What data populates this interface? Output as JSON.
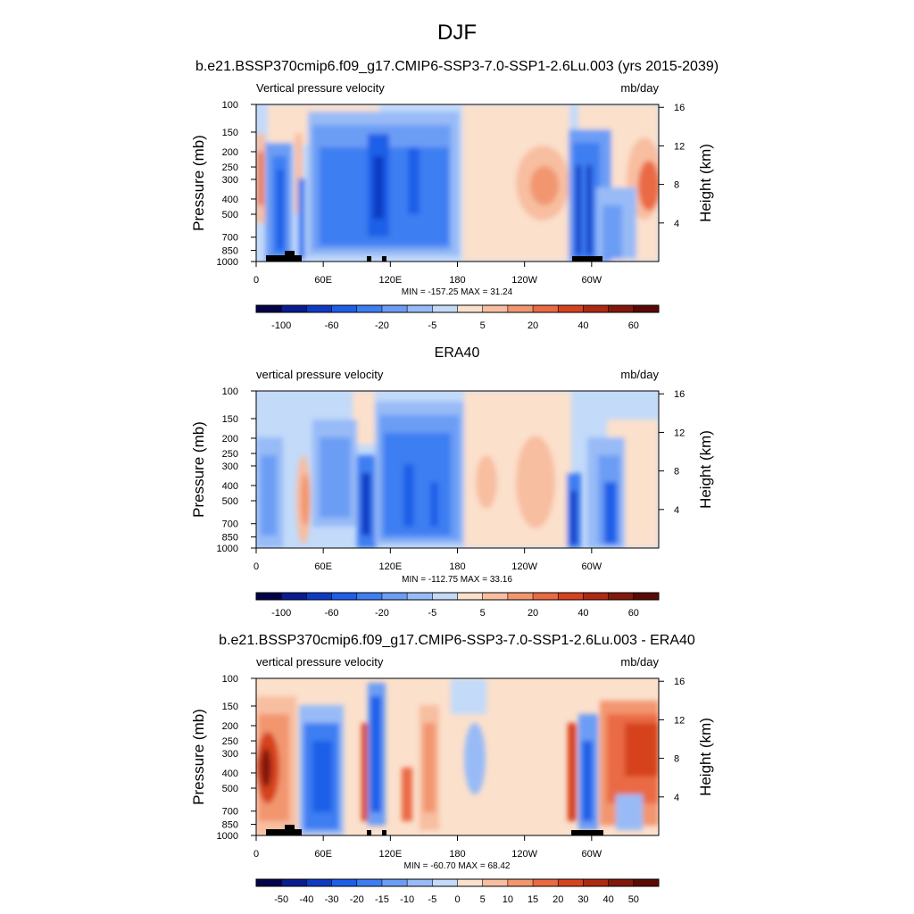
{
  "page_title": "DJF",
  "chart_data": [
    {
      "type": "heatmap",
      "title": "b.e21.BSSP370cmip6.f09_g17.CMIP6-SSP3-7.0-SSP1-2.6Lu.003 (yrs 2015-2039)",
      "left_label": "Vertical pressure velocity",
      "right_label": "mb/day",
      "ylabel": "Pressure (mb)",
      "y2label": "Height (km)",
      "stats": "MIN = -157.25  MAX =  31.24",
      "x_ticks": [
        "0",
        "60E",
        "120E",
        "180",
        "120W",
        "60W"
      ],
      "y_ticks": [
        "100",
        "150",
        "200",
        "250",
        "300",
        "400",
        "500",
        "700",
        "850",
        "1000"
      ],
      "y2_ticks": [
        "4",
        "8",
        "12",
        "16"
      ],
      "colorbar_labels": [
        "-100",
        "-60",
        "-20",
        "-5",
        "5",
        "20",
        "40",
        "60"
      ]
    },
    {
      "type": "heatmap",
      "title": "ERA40",
      "left_label": "vertical pressure velocity",
      "right_label": "mb/day",
      "ylabel": "Pressure (mb)",
      "y2label": "Height (km)",
      "stats": "MIN = -112.75  MAX =  33.16",
      "x_ticks": [
        "0",
        "60E",
        "120E",
        "180",
        "120W",
        "60W"
      ],
      "y_ticks": [
        "100",
        "150",
        "200",
        "250",
        "300",
        "400",
        "500",
        "700",
        "850",
        "1000"
      ],
      "y2_ticks": [
        "4",
        "8",
        "12",
        "16"
      ],
      "colorbar_labels": [
        "-100",
        "-60",
        "-20",
        "-5",
        "5",
        "20",
        "40",
        "60"
      ]
    },
    {
      "type": "heatmap",
      "title": "b.e21.BSSP370cmip6.f09_g17.CMIP6-SSP3-7.0-SSP1-2.6Lu.003 - ERA40",
      "left_label": "vertical pressure velocity",
      "right_label": "mb/day",
      "ylabel": "Pressure (mb)",
      "y2label": "Height (km)",
      "stats": "MIN = -60.70  MAX =  68.42",
      "x_ticks": [
        "0",
        "60E",
        "120E",
        "180",
        "120W",
        "60W"
      ],
      "y_ticks": [
        "100",
        "150",
        "200",
        "250",
        "300",
        "400",
        "500",
        "700",
        "850",
        "1000"
      ],
      "y2_ticks": [
        "4",
        "8",
        "12",
        "16"
      ],
      "colorbar_labels": [
        "-50",
        "-40",
        "-30",
        "-20",
        "-15",
        "-10",
        "-5",
        "0",
        "5",
        "10",
        "15",
        "20",
        "30",
        "40",
        "50"
      ]
    }
  ],
  "colors": {
    "scale": [
      "#04024a",
      "#0a1c8f",
      "#0f3bc4",
      "#1f5ee8",
      "#3e7ef2",
      "#6c9df5",
      "#98bbf7",
      "#c3daf9",
      "#fbe0cc",
      "#f8bea0",
      "#f29670",
      "#ea6a44",
      "#d6431f",
      "#b02912",
      "#82180a",
      "#5a0a04"
    ]
  }
}
